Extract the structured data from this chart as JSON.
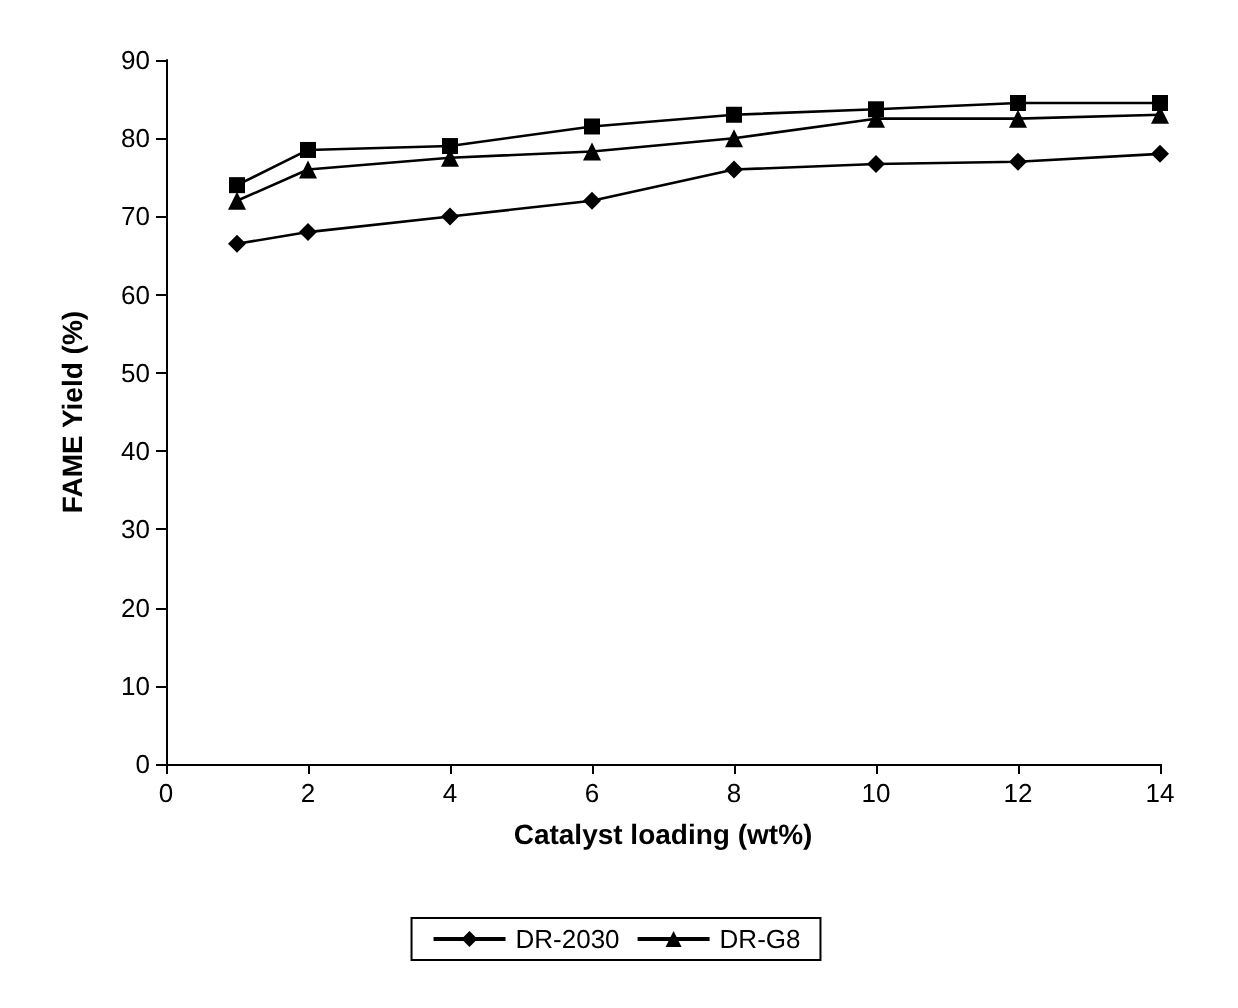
{
  "chart_data": {
    "type": "line",
    "xlabel": "Catalyst loading (wt%)",
    "ylabel": "FAME Yield (%)",
    "x": [
      1,
      2,
      4,
      6,
      8,
      10,
      12,
      14
    ],
    "series": [
      {
        "name": "DR-2030",
        "color": "#000000",
        "marker": "diamond",
        "values": [
          66.5,
          68,
          70,
          72,
          76,
          76.7,
          77,
          78
        ]
      },
      {
        "color": "#000000",
        "marker": "square",
        "values": [
          74,
          78.5,
          79,
          81.5,
          83,
          83.7,
          84.5,
          84.5
        ]
      },
      {
        "name": "DR-G8",
        "color": "#000000",
        "marker": "triangle",
        "values": [
          72,
          76,
          77.5,
          78.3,
          80,
          82.5,
          82.5,
          83
        ]
      }
    ],
    "xlim": [
      0,
      14
    ],
    "xticks": [
      0,
      2,
      4,
      6,
      8,
      10,
      12,
      14
    ],
    "ylim": [
      0,
      90
    ],
    "yticks": [
      0,
      10,
      20,
      30,
      40,
      50,
      60,
      70,
      80,
      90
    ],
    "grid": false,
    "legend": "bottom",
    "line_style": "solid"
  }
}
